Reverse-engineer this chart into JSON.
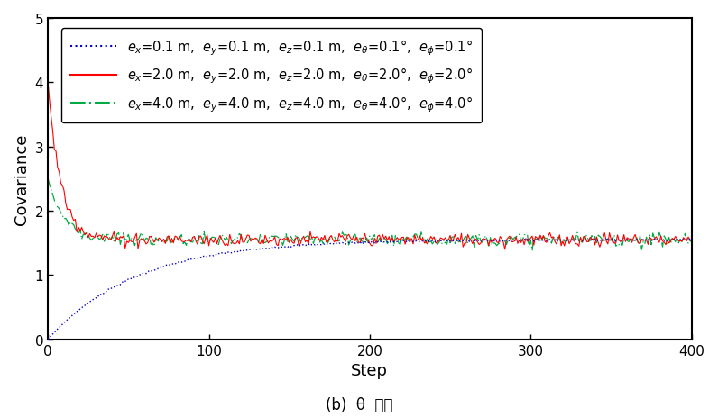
{
  "title": "(b)  θ  방향",
  "xlabel": "Step",
  "ylabel": "Covariance",
  "xlim": [
    0,
    400
  ],
  "ylim": [
    0,
    5
  ],
  "yticks": [
    0,
    1,
    2,
    3,
    4,
    5
  ],
  "xticks": [
    0,
    100,
    200,
    300,
    400
  ],
  "n_steps": 401,
  "steady_state": 1.55,
  "line1_color": "#0000CC",
  "line2_color": "#FF0000",
  "line3_color": "#00AA44",
  "legend_entries": [
    "$e_x$=0.1 m,  $e_y$=0.1 m,  $e_z$=0.1 m,  $e_{\\theta}$=0.1°,  $e_{\\phi}$=0.1°",
    "$e_x$=2.0 m,  $e_y$=2.0 m,  $e_z$=2.0 m,  $e_{\\theta}$=2.0°,  $e_{\\phi}$=2.0°",
    "$e_x$=4.0 m,  $e_y$=4.0 m,  $e_z$=4.0 m,  $e_{\\theta}$=4.0°,  $e_{\\phi}$=4.0°"
  ],
  "noise_amplitude": 0.05,
  "init2": 4.0,
  "init3": 2.5,
  "tau1": 55.0,
  "tau2": 8.0,
  "tau3": 10.0
}
